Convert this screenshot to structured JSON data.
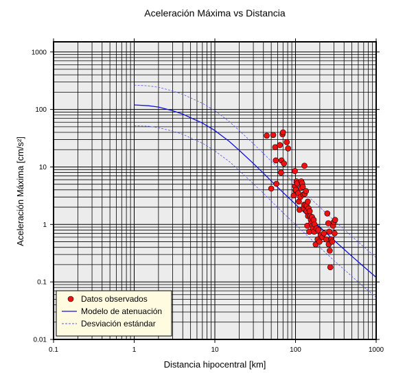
{
  "chart_data": {
    "type": "scatter",
    "title": "Aceleración Máxima vs Distancia",
    "xlabel": "Distancia hipocentral [km]",
    "ylabel": "Aceleración Máxima [cm/s²]",
    "xscale": "log",
    "yscale": "log",
    "xlim": [
      0.1,
      1000
    ],
    "ylim": [
      0.01,
      1500
    ],
    "x_ticks": [
      "0.1",
      "1",
      "10",
      "100",
      "1000"
    ],
    "y_ticks": [
      "0.01",
      "0.1",
      "1",
      "10",
      "100",
      "1000"
    ],
    "grid": true,
    "legend_position": "bottom-left",
    "colors": {
      "plot_background": "#ececec",
      "grid": "#000000",
      "points": "#ee1111",
      "model": "#1111dd",
      "deviation": "#5555ee",
      "legend_background": "#fffbe0"
    },
    "series": [
      {
        "name": "Datos observados",
        "kind": "points",
        "x": [
          44,
          50,
          53,
          56,
          57,
          58,
          64,
          66,
          67,
          69,
          70,
          72,
          78,
          81,
          95,
          98,
          99,
          100,
          101,
          103,
          105,
          108,
          110,
          112,
          115,
          117,
          118,
          121,
          123,
          125,
          126,
          128,
          129,
          130,
          133,
          135,
          137,
          138,
          140,
          142,
          143,
          145,
          148,
          150,
          152,
          155,
          157,
          160,
          162,
          165,
          168,
          170,
          172,
          178,
          182,
          188,
          192,
          198,
          205,
          215,
          225,
          240,
          248,
          255,
          258,
          262,
          266,
          270,
          278,
          285,
          292,
          298,
          305,
          310
        ],
        "y": [
          35,
          4.2,
          36,
          22,
          13,
          5.1,
          24,
          8,
          13,
          37,
          40,
          11.5,
          27,
          21,
          3.2,
          8.5,
          4.6,
          3.9,
          4,
          5.6,
          5.2,
          3.5,
          2.5,
          1.8,
          3,
          4.3,
          5.6,
          5.2,
          4.5,
          3.3,
          1.9,
          2.2,
          10.5,
          3.4,
          2.2,
          3.8,
          1.7,
          2.1,
          0.95,
          2.5,
          1.4,
          1.9,
          0.75,
          1.7,
          1.4,
          1.2,
          1.05,
          1.35,
          0.95,
          0.85,
          1.2,
          0.75,
          1,
          0.45,
          0.85,
          0.55,
          0.8,
          0.5,
          0.65,
          0.6,
          0.7,
          0.55,
          1.55,
          1.05,
          0.45,
          0.75,
          0.35,
          0.18,
          0.55,
          0.5,
          0.95,
          1.1,
          0.7,
          1.2
        ]
      },
      {
        "name": "Modelo de atenuación",
        "kind": "solid-line",
        "x": [
          1,
          1.5,
          2,
          3,
          4,
          5,
          7,
          10,
          15,
          20,
          30,
          40,
          50,
          70,
          100,
          150,
          200,
          300,
          400,
          500,
          700,
          1000
        ],
        "y": [
          120,
          116,
          110,
          95,
          83,
          72,
          58,
          43,
          28,
          19.5,
          11.5,
          7.8,
          5.7,
          3.6,
          2.25,
          1.3,
          0.9,
          0.53,
          0.37,
          0.28,
          0.185,
          0.12
        ]
      },
      {
        "name": "Desviación estándar",
        "kind": "dashed-line",
        "x": [
          1,
          1.5,
          2,
          3,
          4,
          5,
          7,
          10,
          15,
          20,
          30,
          40,
          50,
          70,
          100,
          150,
          200,
          300,
          400,
          500,
          700,
          1000
        ],
        "y": [
          265,
          257,
          243,
          210,
          183,
          159,
          128,
          95,
          62,
          43,
          25.4,
          17.2,
          12.6,
          8,
          5,
          2.9,
          2,
          1.17,
          0.82,
          0.62,
          0.41,
          0.265
        ]
      },
      {
        "name": "",
        "kind": "dashed-line",
        "x": [
          1,
          1.5,
          2,
          3,
          4,
          5,
          7,
          10,
          15,
          20,
          30,
          40,
          50,
          70,
          100,
          150,
          200,
          300,
          400,
          500,
          700,
          1000
        ],
        "y": [
          52,
          51,
          48,
          42,
          37,
          32,
          26,
          19,
          12.5,
          8.7,
          5.1,
          3.5,
          2.55,
          1.6,
          1.0,
          0.58,
          0.4,
          0.235,
          0.165,
          0.125,
          0.082,
          0.054
        ]
      }
    ]
  }
}
